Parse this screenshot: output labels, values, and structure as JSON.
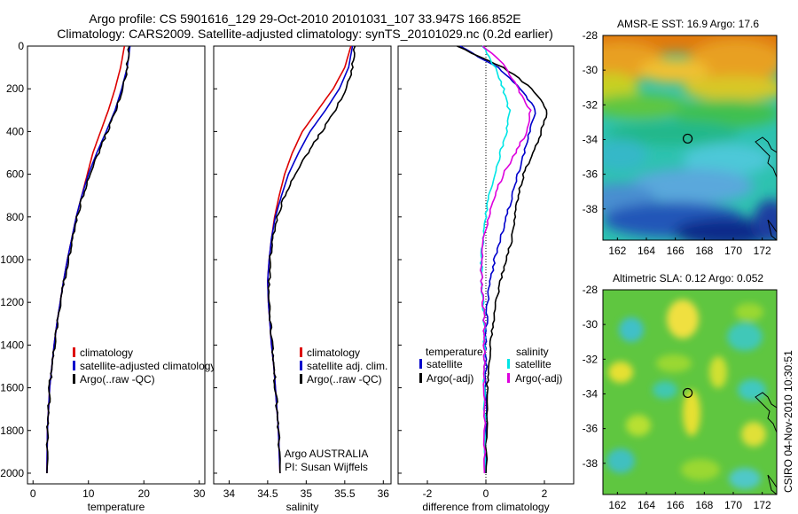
{
  "header": {
    "line1": "Argo profile: CS 5901616_129 29-Oct-2010 20101031_107 33.947S 166.852E",
    "line2": "Climatology: CARS2009. Satellite-adjusted climatology: synTS_20101029.nc (0.2d earlier)"
  },
  "side_label": "CSIRO 04-Nov-2010 10:30:51",
  "colors": {
    "climatology": "#dd0000",
    "satellite": "#0000cc",
    "argo": "#000000",
    "sal_satellite": "#00e5e5",
    "sal_argo": "#dd00dd"
  },
  "chart_data": [
    {
      "id": "temp",
      "type": "line",
      "xlabel": "temperature",
      "ylabel": "",
      "xlim": [
        -1,
        31
      ],
      "ylim": [
        2050,
        0
      ],
      "xticks": [
        0,
        10,
        20,
        30
      ],
      "yticks": [
        0,
        200,
        400,
        600,
        800,
        1000,
        1200,
        1400,
        1600,
        1800,
        2000
      ],
      "legend": [
        "climatology",
        "satellite-adjusted climatology",
        "Argo(..raw -QC)"
      ],
      "legend_position": "bottom-right",
      "series": [
        {
          "name": "climatology",
          "color": "#dd0000",
          "x": [
            16.5,
            15.8,
            14.8,
            13.6,
            12.2,
            10.8,
            9.8,
            8.8,
            7.8,
            7.0,
            6.2,
            5.5,
            4.9,
            4.3,
            3.8,
            3.4,
            3.0,
            2.8,
            2.6,
            2.5
          ],
          "y": [
            0,
            100,
            200,
            300,
            400,
            500,
            600,
            700,
            800,
            900,
            1000,
            1100,
            1200,
            1300,
            1400,
            1500,
            1600,
            1700,
            1800,
            2000
          ]
        },
        {
          "name": "satellite",
          "color": "#0000cc",
          "x": [
            17.5,
            17.0,
            16.0,
            14.8,
            13.2,
            11.5,
            10.0,
            8.8,
            7.8,
            7.0,
            6.2,
            5.5,
            4.9,
            4.3,
            3.8,
            3.4,
            3.0,
            2.8,
            2.6,
            2.5
          ],
          "y": [
            0,
            100,
            200,
            300,
            400,
            500,
            600,
            700,
            800,
            900,
            1000,
            1100,
            1200,
            1300,
            1400,
            1500,
            1600,
            1700,
            1800,
            2000
          ]
        },
        {
          "name": "Argo",
          "color": "#000000",
          "x": [
            17.2,
            17.0,
            16.2,
            15.0,
            13.4,
            11.8,
            10.2,
            9.0,
            8.0,
            7.2,
            6.4,
            5.6,
            5.0,
            4.4,
            3.9,
            3.4,
            3.0,
            2.8,
            2.6,
            2.5
          ],
          "y": [
            0,
            100,
            200,
            300,
            400,
            500,
            600,
            700,
            800,
            900,
            1000,
            1100,
            1200,
            1300,
            1400,
            1500,
            1600,
            1700,
            1800,
            2000
          ]
        }
      ]
    },
    {
      "id": "sal",
      "type": "line",
      "xlabel": "salinity",
      "ylabel": "",
      "xlim": [
        33.8,
        36.1
      ],
      "ylim": [
        2050,
        0
      ],
      "xticks": [
        34,
        34.5,
        35,
        35.5,
        36
      ],
      "yticks": [
        0,
        200,
        400,
        600,
        800,
        1000,
        1200,
        1400,
        1600,
        1800,
        2000
      ],
      "legend": [
        "climatology",
        "satellite adj. clim.",
        "Argo(..raw -QC)"
      ],
      "legend_position": "bottom-right",
      "annotation": [
        "Argo AUSTRALIA",
        "PI: Susan Wijffels"
      ],
      "series": [
        {
          "name": "climatology",
          "color": "#dd0000",
          "x": [
            35.58,
            35.5,
            35.35,
            35.15,
            34.95,
            34.82,
            34.72,
            34.65,
            34.59,
            34.55,
            34.52,
            34.5,
            34.51,
            34.53,
            34.55,
            34.58,
            34.6,
            34.62,
            34.64,
            34.66
          ],
          "y": [
            0,
            100,
            200,
            300,
            400,
            500,
            600,
            700,
            800,
            900,
            1000,
            1100,
            1200,
            1300,
            1400,
            1500,
            1600,
            1700,
            1800,
            2000
          ]
        },
        {
          "name": "satellite",
          "color": "#0000cc",
          "x": [
            35.6,
            35.55,
            35.43,
            35.25,
            35.05,
            34.9,
            34.77,
            34.68,
            34.6,
            34.55,
            34.52,
            34.5,
            34.51,
            34.53,
            34.55,
            34.58,
            34.6,
            34.62,
            34.64,
            34.66
          ],
          "y": [
            0,
            100,
            200,
            300,
            400,
            500,
            600,
            700,
            800,
            900,
            1000,
            1100,
            1200,
            1300,
            1400,
            1500,
            1600,
            1700,
            1800,
            2000
          ]
        },
        {
          "name": "Argo",
          "color": "#000000",
          "x": [
            35.62,
            35.6,
            35.52,
            35.38,
            35.2,
            35.02,
            34.85,
            34.72,
            34.63,
            34.57,
            34.53,
            34.52,
            34.52,
            34.54,
            34.56,
            34.58,
            34.6,
            34.62,
            34.64,
            34.66
          ],
          "y": [
            0,
            100,
            200,
            300,
            400,
            500,
            600,
            700,
            800,
            900,
            1000,
            1100,
            1200,
            1300,
            1400,
            1500,
            1600,
            1700,
            1800,
            2000
          ]
        }
      ]
    },
    {
      "id": "diff",
      "type": "line",
      "xlabel": "difference from climatology",
      "ylabel": "",
      "xlim": [
        -3,
        3
      ],
      "ylim": [
        2050,
        0
      ],
      "xticks": [
        -2,
        0,
        2
      ],
      "yticks": [
        0,
        200,
        400,
        600,
        800,
        1000,
        1200,
        1400,
        1600,
        1800,
        2000
      ],
      "legend_left_title": "temperature",
      "legend_left": [
        "satellite",
        "Argo(-adj)"
      ],
      "legend_right_title": "salinity",
      "legend_right": [
        "satellite",
        "Argo(-adj)"
      ],
      "legend_position": "bottom",
      "series": [
        {
          "name": "temperature satellite",
          "color": "#0000cc",
          "x": [
            -0.9,
            0.4,
            1.2,
            1.7,
            1.5,
            1.3,
            1.1,
            0.9,
            0.7,
            0.5,
            0.3,
            0.15,
            0.05,
            0.02,
            0.0,
            0.0,
            0.0,
            0.0,
            0.0
          ],
          "y": [
            0,
            100,
            200,
            300,
            400,
            500,
            600,
            700,
            800,
            900,
            1000,
            1100,
            1200,
            1300,
            1400,
            1500,
            1600,
            1800,
            2000
          ]
        },
        {
          "name": "temperature Argo",
          "color": "#000000",
          "x": [
            -1.0,
            0.6,
            1.6,
            2.1,
            1.9,
            1.6,
            1.3,
            1.1,
            1.0,
            0.9,
            0.7,
            0.5,
            0.35,
            0.25,
            0.15,
            0.1,
            0.05,
            0.02,
            0.0
          ],
          "y": [
            0,
            100,
            200,
            300,
            400,
            500,
            600,
            700,
            800,
            900,
            1000,
            1100,
            1200,
            1300,
            1400,
            1500,
            1600,
            1800,
            2000
          ]
        },
        {
          "name": "salinity satellite",
          "color": "#00e5e5",
          "x": [
            -0.1,
            0.3,
            0.6,
            0.8,
            0.7,
            0.5,
            0.3,
            0.1,
            0.0,
            -0.1,
            -0.15,
            -0.15,
            -0.1,
            -0.05,
            -0.05,
            -0.05,
            -0.05,
            -0.05,
            -0.05
          ],
          "y": [
            0,
            100,
            200,
            300,
            400,
            500,
            600,
            700,
            800,
            900,
            1000,
            1100,
            1200,
            1300,
            1400,
            1500,
            1600,
            1800,
            2000
          ]
        },
        {
          "name": "salinity Argo",
          "color": "#dd00dd",
          "x": [
            -0.1,
            0.7,
            1.1,
            1.5,
            1.4,
            1.0,
            0.6,
            0.3,
            0.1,
            -0.1,
            -0.15,
            -0.15,
            -0.1,
            -0.05,
            -0.05,
            -0.05,
            -0.05,
            -0.05,
            -0.05
          ],
          "y": [
            0,
            100,
            200,
            300,
            400,
            500,
            600,
            700,
            800,
            900,
            1000,
            1100,
            1200,
            1300,
            1400,
            1500,
            1600,
            1800,
            2000
          ]
        }
      ]
    },
    {
      "id": "sst",
      "type": "heatmap",
      "title": "AMSR-E SST: 16.9 Argo: 17.6",
      "xlim": [
        161,
        173
      ],
      "ylim": [
        -39.8,
        -28
      ],
      "xticks": [
        162,
        164,
        166,
        168,
        170,
        172
      ],
      "yticks": [
        -28,
        -30,
        -32,
        -34,
        -36,
        -38
      ],
      "marker": [
        166.852,
        -33.947
      ]
    },
    {
      "id": "sla",
      "type": "heatmap",
      "title": "Altimetric SLA: 0.12 Argo: 0.052",
      "xlim": [
        161,
        173
      ],
      "ylim": [
        -39.8,
        -28
      ],
      "xticks": [
        162,
        164,
        166,
        168,
        170,
        172
      ],
      "yticks": [
        -28,
        -30,
        -32,
        -34,
        -36,
        -38
      ],
      "marker": [
        166.852,
        -33.947
      ]
    }
  ]
}
